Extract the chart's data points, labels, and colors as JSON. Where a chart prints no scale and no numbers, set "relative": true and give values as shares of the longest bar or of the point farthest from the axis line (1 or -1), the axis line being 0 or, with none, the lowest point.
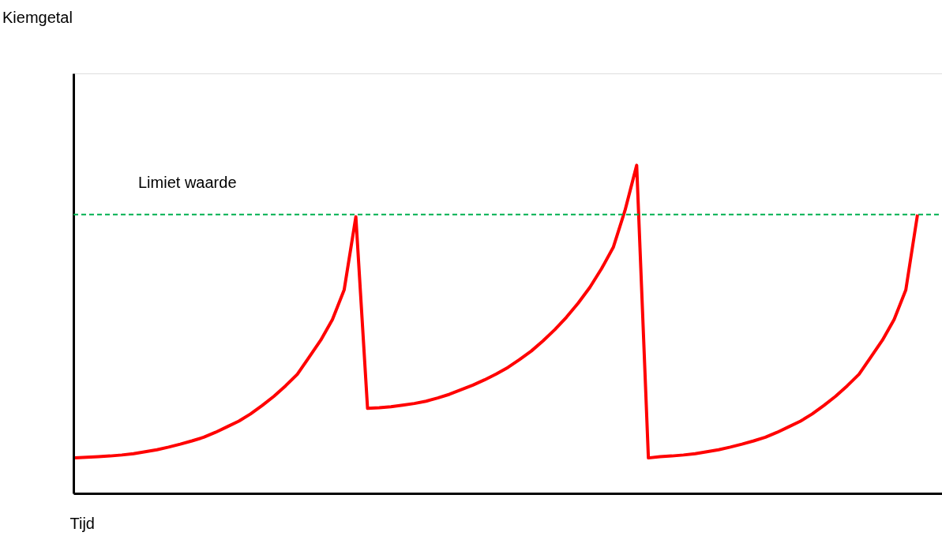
{
  "chart_data": {
    "type": "line",
    "relative": true,
    "xlabel": "Tijd",
    "annotations": [
      "Kiemgetal"
    ],
    "grid": false,
    "legend": false,
    "marker": "none",
    "line_style": "solid",
    "categories": [
      null,
      null,
      null,
      null,
      null,
      null,
      null,
      null,
      null,
      null,
      null,
      null,
      null,
      null,
      null,
      null,
      null,
      null,
      null,
      null,
      null,
      null,
      null,
      null,
      null,
      null,
      null,
      null,
      null,
      null,
      null,
      null,
      null,
      null,
      null,
      null,
      null,
      null,
      null,
      null,
      null,
      null,
      null,
      null,
      null,
      null,
      null,
      null,
      null,
      null,
      null,
      null,
      null,
      null,
      null,
      null,
      null,
      null,
      null,
      null,
      null,
      null,
      null,
      null,
      null,
      null,
      null,
      null,
      null,
      null,
      null,
      null,
      null
    ],
    "series": [
      {
        "color": "#ff0000",
        "values": [
          0.108,
          0.11,
          0.112,
          0.114,
          0.117,
          0.121,
          0.127,
          0.133,
          0.141,
          0.15,
          0.16,
          0.171,
          0.186,
          0.203,
          0.22,
          0.242,
          0.268,
          0.296,
          0.328,
          0.363,
          0.415,
          0.467,
          0.53,
          0.62,
          0.843,
          0.259,
          0.261,
          0.264,
          0.269,
          0.274,
          0.281,
          0.291,
          0.302,
          0.316,
          0.33,
          0.346,
          0.364,
          0.384,
          0.408,
          0.434,
          0.465,
          0.499,
          0.537,
          0.58,
          0.628,
          0.685,
          0.75,
          0.862,
          1.0,
          0.108,
          0.112,
          0.114,
          0.117,
          0.121,
          0.127,
          0.133,
          0.141,
          0.15,
          0.16,
          0.171,
          0.186,
          0.203,
          0.22,
          0.242,
          0.268,
          0.296,
          0.328,
          0.363,
          0.415,
          0.467,
          0.53,
          0.62,
          0.85
        ]
      }
    ],
    "ref_lines": [
      {
        "axis": "y",
        "value": 0.85,
        "label": "Limiet waarde",
        "color": "#00b050",
        "line_style": "dashed"
      }
    ]
  }
}
